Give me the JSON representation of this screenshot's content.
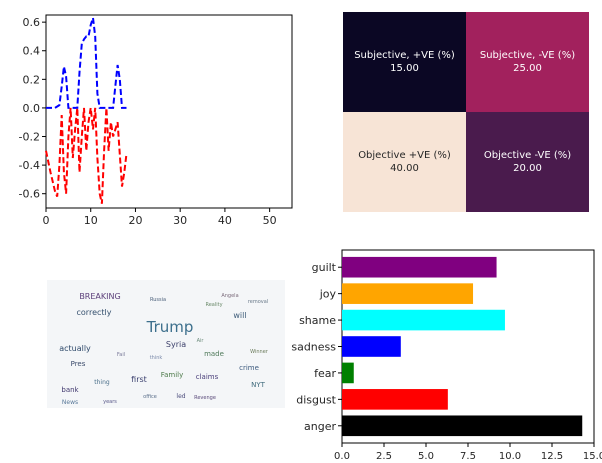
{
  "chart_data": [
    {
      "type": "line",
      "xlim": [
        0,
        55
      ],
      "ylim": [
        -0.7,
        0.65
      ],
      "x_ticks": [
        0,
        10,
        20,
        30,
        40,
        50
      ],
      "y_ticks": [
        0.6,
        0.4,
        0.2,
        0.0,
        -0.2,
        -0.4,
        -0.6
      ],
      "series": [
        {
          "color": "#0000ff",
          "style": "dashed",
          "points": [
            [
              0,
              0
            ],
            [
              2,
              0
            ],
            [
              3,
              0.02
            ],
            [
              3.5,
              0.15
            ],
            [
              4,
              0.29
            ],
            [
              4.5,
              0.22
            ],
            [
              5,
              0
            ],
            [
              7,
              0
            ],
            [
              7.5,
              0.25
            ],
            [
              8,
              0.45
            ],
            [
              8.5,
              0.48
            ],
            [
              9,
              0.5
            ],
            [
              9.5,
              0.5
            ],
            [
              10,
              0.58
            ],
            [
              10.5,
              0.63
            ],
            [
              11,
              0.5
            ],
            [
              11.5,
              0.1
            ],
            [
              12,
              0
            ],
            [
              15,
              0
            ],
            [
              15.5,
              0.15
            ],
            [
              16,
              0.3
            ],
            [
              16.5,
              0.2
            ],
            [
              17,
              0
            ],
            [
              18,
              0
            ]
          ]
        },
        {
          "color": "#ff0000",
          "style": "dashed",
          "points": [
            [
              0,
              -0.3
            ],
            [
              1,
              -0.45
            ],
            [
              2,
              -0.58
            ],
            [
              2.5,
              -0.62
            ],
            [
              3,
              -0.4
            ],
            [
              3.5,
              -0.05
            ],
            [
              4,
              -0.45
            ],
            [
              4.5,
              -0.6
            ],
            [
              5,
              -0.2
            ],
            [
              5.5,
              0
            ],
            [
              6,
              -0.35
            ],
            [
              6.5,
              -0.15
            ],
            [
              7,
              0
            ],
            [
              7.5,
              -0.45
            ],
            [
              8,
              -0.2
            ],
            [
              8.5,
              0
            ],
            [
              9,
              -0.3
            ],
            [
              9.5,
              -0.1
            ],
            [
              10,
              0
            ],
            [
              10.5,
              -0.15
            ],
            [
              11,
              0
            ],
            [
              11.5,
              -0.35
            ],
            [
              12,
              -0.6
            ],
            [
              12.5,
              -0.67
            ],
            [
              13,
              -0.3
            ],
            [
              13.5,
              0
            ],
            [
              14,
              -0.3
            ],
            [
              14.5,
              -0.1
            ],
            [
              15,
              -0.2
            ],
            [
              16,
              -0.1
            ],
            [
              17,
              -0.55
            ],
            [
              17.5,
              -0.45
            ],
            [
              18,
              -0.32
            ]
          ]
        }
      ]
    },
    {
      "type": "heatmap",
      "cells": [
        {
          "label": "Subjective, +VE (%)",
          "value": "15.00",
          "color": "#0b0724",
          "text_color": "#ffffff"
        },
        {
          "label": "Subjective, -VE (%)",
          "value": "25.00",
          "color": "#a2215d",
          "text_color": "#ffffff"
        },
        {
          "label": "Objective +VE (%)",
          "value": "40.00",
          "color": "#f7e4d6",
          "text_color": "#262626"
        },
        {
          "label": "Objective -VE (%)",
          "value": "20.00",
          "color": "#4a1b4d",
          "text_color": "#ffffff"
        }
      ]
    },
    {
      "type": "bar",
      "orientation": "horizontal",
      "categories": [
        "guilt",
        "joy",
        "shame",
        "sadness",
        "fear",
        "disgust",
        "anger"
      ],
      "values": [
        9.2,
        7.8,
        9.7,
        3.5,
        0.7,
        6.3,
        14.3
      ],
      "colors": [
        "#800080",
        "#ffa500",
        "#00ffff",
        "#0000ff",
        "#008000",
        "#ff0000",
        "#000000"
      ],
      "xlim": [
        0,
        15
      ],
      "x_ticks": [
        "0.0",
        "2.5",
        "5.0",
        "7.5",
        "10.0",
        "12.5",
        "15.0"
      ]
    }
  ],
  "wordcloud": {
    "words": [
      {
        "text": "Trump",
        "color": "#3c6f8c",
        "size": 15
      },
      {
        "text": "BREAKING",
        "color": "#5c3f7a",
        "size": 8
      },
      {
        "text": "correctly",
        "color": "#35506e",
        "size": 8
      },
      {
        "text": "actually",
        "color": "#2f4a6b",
        "size": 8
      },
      {
        "text": "Syria",
        "color": "#3b3f6a",
        "size": 8
      },
      {
        "text": "will",
        "color": "#3f5d7a",
        "size": 8
      },
      {
        "text": "made",
        "color": "#4f7a5a",
        "size": 7
      },
      {
        "text": "first",
        "color": "#3a3f6e",
        "size": 8
      },
      {
        "text": "claims",
        "color": "#4a3f7a",
        "size": 7
      },
      {
        "text": "NYT",
        "color": "#3e6a7c",
        "size": 7
      },
      {
        "text": "Family",
        "color": "#4d7a4a",
        "size": 7
      },
      {
        "text": "crime",
        "color": "#3c5a7e",
        "size": 7
      },
      {
        "text": "bank",
        "color": "#40386e",
        "size": 7
      },
      {
        "text": "thing",
        "color": "#4a6f8a",
        "size": 6
      },
      {
        "text": "Revenge",
        "color": "#5a4a7a",
        "size": 5
      },
      {
        "text": "Russia",
        "color": "#4a5f7a",
        "size": 5
      },
      {
        "text": "Pres",
        "color": "#3a4a6a",
        "size": 7
      },
      {
        "text": "office",
        "color": "#5a6f8a",
        "size": 5
      },
      {
        "text": "removal",
        "color": "#6a7a8a",
        "size": 5
      },
      {
        "text": "Reality",
        "color": "#6a8a6a",
        "size": 5
      },
      {
        "text": "News",
        "color": "#5a7a9a",
        "size": 6
      },
      {
        "text": "years",
        "color": "#5a5a8a",
        "size": 5
      },
      {
        "text": "Winner",
        "color": "#6a7a5a",
        "size": 5
      },
      {
        "text": "Angela",
        "color": "#7a6a7a",
        "size": 5
      },
      {
        "text": "led",
        "color": "#4a4a7a",
        "size": 6
      },
      {
        "text": "Fail",
        "color": "#7a7a9a",
        "size": 5
      },
      {
        "text": "think",
        "color": "#7a8aaa",
        "size": 5
      },
      {
        "text": "Air",
        "color": "#6a8a7a",
        "size": 5
      }
    ]
  }
}
